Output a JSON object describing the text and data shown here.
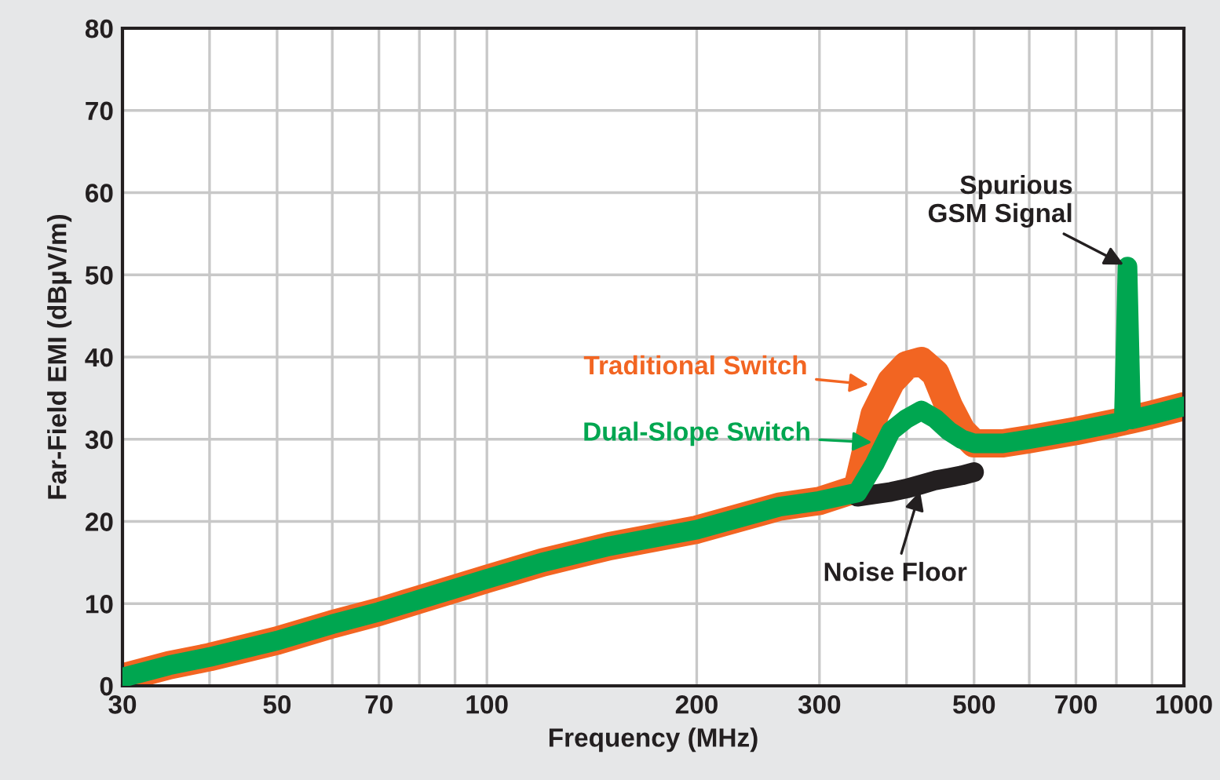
{
  "chart_data": {
    "type": "line",
    "xlabel": "Frequency (MHz)",
    "ylabel": "Far-Field EMI (dBµV/m)",
    "x": [
      30,
      35,
      40,
      50,
      60,
      70,
      80,
      100,
      120,
      150,
      200,
      263,
      300,
      340,
      360,
      380,
      400,
      420,
      440,
      460,
      480,
      500,
      550,
      600,
      700,
      800,
      820,
      830,
      840,
      900,
      1000
    ],
    "series": [
      {
        "name": "Traditional Switch",
        "color": "#f26522",
        "values": [
          1,
          2.5,
          3.5,
          5.5,
          7.5,
          9,
          10.5,
          13,
          15,
          17,
          19,
          21.8,
          22.5,
          24,
          33,
          37,
          39,
          39.5,
          38,
          34,
          31,
          29.5,
          29.5,
          30,
          31,
          32,
          32.2,
          32.3,
          32.4,
          33,
          34
        ]
      },
      {
        "name": "Noise Floor",
        "color": "#231f20",
        "values": [
          null,
          null,
          null,
          null,
          null,
          null,
          null,
          null,
          null,
          null,
          null,
          null,
          null,
          23,
          23.3,
          23.6,
          24,
          24.5,
          25,
          25.3,
          25.6,
          26,
          null,
          null,
          null,
          null,
          null,
          null,
          null,
          null,
          null
        ]
      },
      {
        "name": "Dual-Slope Switch",
        "color": "#00a650",
        "values": [
          1,
          2.5,
          3.5,
          5.5,
          7.5,
          9,
          10.5,
          13,
          15,
          17,
          19,
          21.8,
          22.5,
          23.5,
          27,
          31,
          32.5,
          33.5,
          32.5,
          31,
          30,
          29.5,
          29.5,
          30,
          31,
          32,
          32.2,
          51,
          32.4,
          33,
          34
        ]
      }
    ],
    "annotations": [
      {
        "text": "Spurious\nGSM Signal",
        "x": 830,
        "y": 51
      }
    ],
    "log": "x",
    "xlim": [
      30,
      1000
    ],
    "ylim": [
      0,
      80
    ],
    "xticks": [
      30,
      {
        "value": 40,
        "label": null
      },
      50,
      {
        "value": 60,
        "label": null
      },
      70,
      {
        "value": 80,
        "label": null
      },
      {
        "value": 90,
        "label": null
      },
      100,
      200,
      300,
      {
        "value": 400,
        "label": null
      },
      500,
      {
        "value": 600,
        "label": null
      },
      700,
      {
        "value": 800,
        "label": null
      },
      {
        "value": 900,
        "label": null
      },
      1000
    ],
    "yticks": [
      0,
      10,
      20,
      30,
      40,
      50,
      60,
      70,
      80
    ],
    "grid": true,
    "line_style": "solid",
    "legend": "center"
  }
}
